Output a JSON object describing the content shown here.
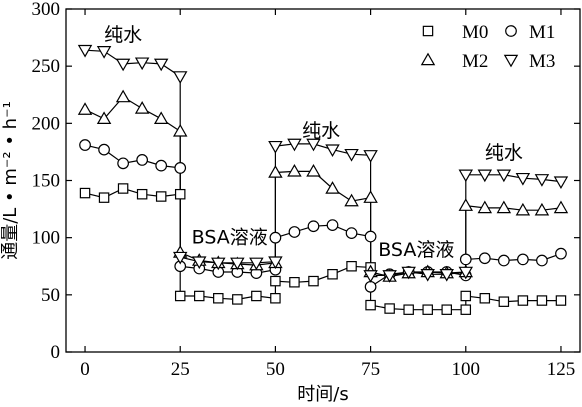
{
  "chart_data": {
    "type": "line",
    "xlabel": "时间/s",
    "ylabel": "通量/L • m⁻² • h⁻¹",
    "xlim": [
      -5,
      130
    ],
    "ylim": [
      0,
      300
    ],
    "xticks": [
      0,
      25,
      50,
      75,
      100,
      125
    ],
    "yticks": [
      0,
      50,
      100,
      150,
      200,
      250,
      300
    ],
    "grid": false,
    "legend": "top-right",
    "annotations": [
      {
        "text": "纯水",
        "x": 10,
        "y": 278
      },
      {
        "text": "BSA溶液",
        "x": 38,
        "y": 101
      },
      {
        "text": "纯水",
        "x": 62,
        "y": 194
      },
      {
        "text": "BSA溶液",
        "x": 87,
        "y": 90
      },
      {
        "text": "纯水",
        "x": 110,
        "y": 175
      }
    ],
    "series": [
      {
        "name": "M0",
        "marker": "square",
        "x": [
          0,
          5,
          10,
          15,
          20,
          25,
          25,
          30,
          35,
          40,
          45,
          50,
          50,
          55,
          60,
          65,
          70,
          75,
          75,
          80,
          85,
          90,
          95,
          100,
          100,
          105,
          110,
          115,
          120,
          125
        ],
        "y": [
          139,
          135,
          143,
          138,
          136,
          138,
          49,
          49,
          47,
          46,
          49,
          47,
          62,
          61,
          62,
          68,
          75,
          74,
          41,
          38,
          37,
          37,
          37,
          37,
          49,
          47,
          44,
          45,
          45,
          45
        ]
      },
      {
        "name": "M1",
        "marker": "circle",
        "x": [
          0,
          5,
          10,
          15,
          20,
          25,
          25,
          30,
          35,
          40,
          45,
          50,
          50,
          55,
          60,
          65,
          70,
          75,
          75,
          80,
          85,
          90,
          95,
          100,
          100,
          105,
          110,
          115,
          120,
          125
        ],
        "y": [
          181,
          177,
          165,
          168,
          163,
          161,
          75,
          73,
          70,
          70,
          69,
          72,
          100,
          105,
          110,
          111,
          104,
          101,
          57,
          68,
          70,
          70,
          70,
          67,
          81,
          82,
          80,
          81,
          80,
          86
        ]
      },
      {
        "name": "M2",
        "marker": "triangle-up",
        "x": [
          0,
          5,
          10,
          15,
          20,
          25,
          25,
          30,
          35,
          40,
          45,
          50,
          50,
          55,
          60,
          65,
          70,
          75,
          75,
          80,
          85,
          90,
          95,
          100,
          100,
          105,
          110,
          115,
          120,
          125
        ],
        "y": [
          212,
          204,
          223,
          213,
          204,
          193,
          87,
          80,
          78,
          77,
          76,
          78,
          157,
          158,
          158,
          143,
          132,
          135,
          70,
          66,
          69,
          70,
          69,
          70,
          128,
          126,
          126,
          124,
          124,
          126
        ]
      },
      {
        "name": "M3",
        "marker": "triangle-down",
        "x": [
          0,
          5,
          10,
          15,
          20,
          25,
          25,
          30,
          35,
          40,
          45,
          50,
          50,
          55,
          60,
          65,
          70,
          75,
          75,
          80,
          85,
          90,
          95,
          100,
          100,
          105,
          110,
          115,
          120,
          125
        ],
        "y": [
          264,
          263,
          252,
          253,
          252,
          241,
          83,
          79,
          78,
          78,
          78,
          79,
          180,
          182,
          182,
          177,
          173,
          172,
          67,
          67,
          70,
          68,
          68,
          70,
          155,
          155,
          155,
          152,
          151,
          149
        ]
      }
    ]
  }
}
